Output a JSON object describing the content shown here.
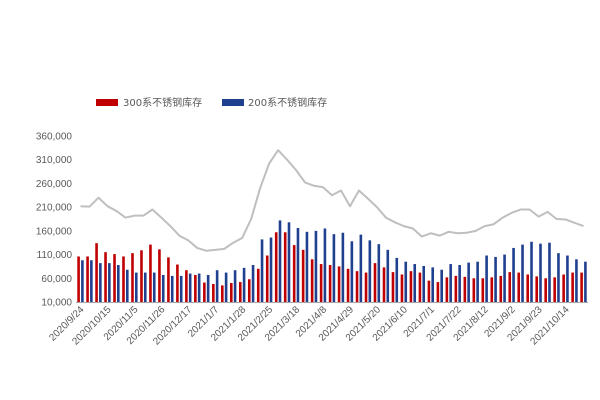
{
  "colors": {
    "series300": "#C00000",
    "series200": "#1F3F8F",
    "total_line": "#BFBFBF",
    "axis": "#A6A6A6",
    "text": "#595959"
  },
  "chart_data": {
    "type": "bar",
    "x_tick_labels": [
      "2020/9/24",
      "2020/10/15",
      "2020/11/5",
      "2020/11/26",
      "2020/12/17",
      "2021/1/7",
      "2021/1/28",
      "2021/2/25",
      "2021/3/18",
      "2021/4/8",
      "2021/4/29",
      "2021/5/20",
      "2021/6/10",
      "2021/7/1",
      "2021/7/22",
      "2021/8/12",
      "2021/9/2",
      "2021/9/23",
      "2021/10/14"
    ],
    "y_ticks": [
      "10,000",
      "60,000",
      "110,000",
      "160,000",
      "210,000",
      "260,000",
      "310,000",
      "360,000"
    ],
    "ylim": [
      10000,
      360000
    ],
    "legend": [
      "300系不锈钢库存",
      "200系不锈钢库存"
    ],
    "series": [
      {
        "name": "300系不锈钢库存",
        "type": "bar",
        "values": [
          106000,
          106000,
          134000,
          115000,
          111000,
          106000,
          113000,
          119000,
          131000,
          121000,
          104000,
          89000,
          77000,
          67000,
          51000,
          48000,
          45000,
          50000,
          52000,
          58000,
          80000,
          108000,
          157000,
          157000,
          130000,
          120000,
          100000,
          90000,
          88000,
          85000,
          80000,
          75000,
          72000,
          92000,
          83000,
          73000,
          68000,
          75000,
          72000,
          55000,
          52000,
          62000,
          65000,
          63000,
          60000,
          60000,
          62000,
          65000,
          73000,
          72000,
          68000,
          64000,
          60000,
          62000,
          68000,
          72000,
          72000
        ]
      },
      {
        "name": "200系不锈钢库存",
        "type": "bar",
        "values": [
          98000,
          98000,
          92000,
          92000,
          88000,
          78000,
          72000,
          72000,
          72000,
          67000,
          65000,
          65000,
          70000,
          70000,
          67000,
          77000,
          72000,
          77000,
          82000,
          88000,
          142000,
          146000,
          182000,
          178000,
          166000,
          158000,
          160000,
          165000,
          153000,
          156000,
          138000,
          152000,
          140000,
          132000,
          120000,
          103000,
          95000,
          90000,
          86000,
          83000,
          78000,
          90000,
          88000,
          93000,
          95000,
          108000,
          105000,
          110000,
          124000,
          131000,
          137000,
          133000,
          135000,
          113000,
          108000,
          100000,
          95000
        ]
      },
      {
        "name": "",
        "type": "line",
        "values": [
          212000,
          211000,
          230000,
          212000,
          202000,
          188000,
          192000,
          192000,
          205000,
          188000,
          170000,
          150000,
          140000,
          124000,
          118000,
          120000,
          122000,
          135000,
          145000,
          185000,
          250000,
          302000,
          330000,
          310000,
          288000,
          262000,
          255000,
          252000,
          235000,
          245000,
          212000,
          245000,
          228000,
          210000,
          188000,
          178000,
          170000,
          165000,
          148000,
          155000,
          150000,
          158000,
          155000,
          156000,
          160000,
          170000,
          174000,
          188000,
          198000,
          205000,
          205000,
          190000,
          200000,
          185000,
          184000,
          177000,
          170000
        ]
      }
    ],
    "grid": false,
    "legend_position": "top-left"
  }
}
